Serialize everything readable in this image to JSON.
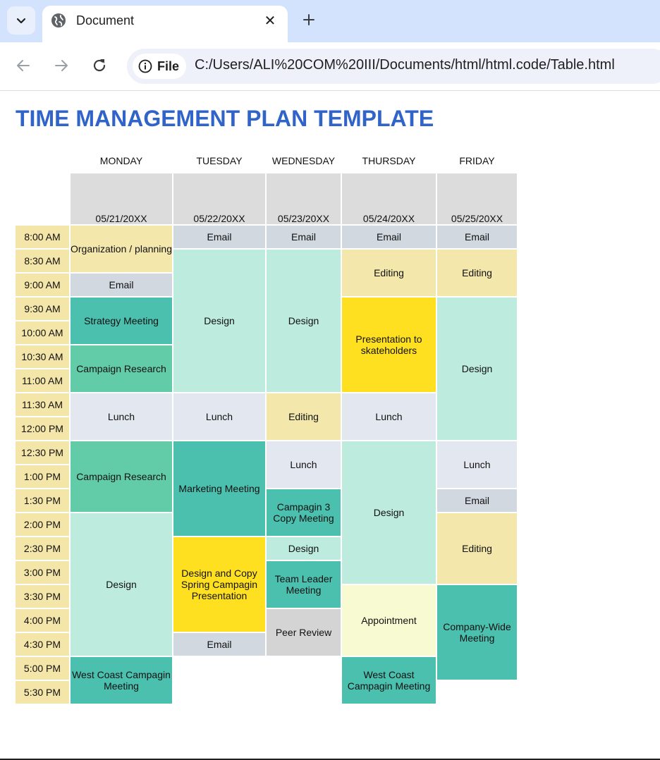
{
  "browser": {
    "tab_title": "Document",
    "tab_favicon": "globe-icon",
    "address_chip_label": "File",
    "url": "C:/Users/ALI%20COM%20III/Documents/html/html.code/Table.html"
  },
  "page": {
    "title": "TIME MANAGEMENT PLAN TEMPLATE"
  },
  "schedule": {
    "days": [
      "MONDAY",
      "TUESDAY",
      "WEDNESDAY",
      "THURSDAY",
      "FRIDAY"
    ],
    "dates": [
      "05/21/20XX",
      "05/22/20XX",
      "05/23/20XX",
      "05/24/20XX",
      "05/25/20XX"
    ],
    "times": [
      "8:00 AM",
      "8:30 AM",
      "9:00 AM",
      "9:30 AM",
      "10:00 AM",
      "10:30 AM",
      "11:00 AM",
      "11:30 AM",
      "12:00 PM",
      "12:30 PM",
      "1:00 PM",
      "1:30 PM",
      "2:00 PM",
      "2:30 PM",
      "3:00 PM",
      "3:30 PM",
      "4:00 PM",
      "4:30 PM",
      "5:00 PM",
      "5:30 PM"
    ],
    "events": {
      "email": "Email",
      "organization": "Organization / planning",
      "strategy": "Strategy Meeting",
      "campaign_research": "Campaign Research",
      "lunch": "Lunch",
      "design": "Design",
      "editing": "Editing",
      "presentation": "Presentation to skateholders",
      "marketing": "Marketing Meeting",
      "campaign3": "Campagin 3 Copy Meeting",
      "design_copy": "Design and Copy Spring Campagin Presentation",
      "team_leader": "Team Leader Meeting",
      "peer_review": "Peer Review",
      "appointment": "Appointment",
      "company_wide": "Company-Wide Meeting",
      "west_coast": "West Coast Campagin Meeting"
    },
    "colors": {
      "time_column": "#f4e5a8",
      "date_header": "#dcdcdc",
      "email": "#d1d8e0",
      "meeting_teal": "#4bc0ae",
      "research_green": "#62cca9",
      "design_mint": "#bdebde",
      "editing_sand": "#f3e7ab",
      "presentation_yellow": "#ffe020",
      "lunch_gray": "#e3e7ef",
      "appointment_cream": "#f8fbd2",
      "peer_review_gray": "#d4d4d4",
      "title_blue": "#3064c8"
    }
  }
}
